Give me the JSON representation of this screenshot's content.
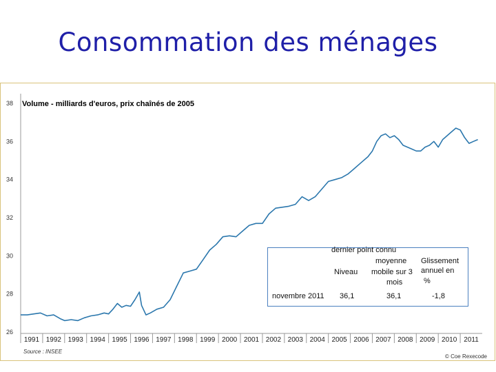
{
  "slide": {
    "title": "Consommation des ménages"
  },
  "chart_data": {
    "type": "line",
    "subtitle": "Volume - milliards d'euros, prix chaînés de 2005",
    "ylim": [
      26,
      38
    ],
    "yticks": [
      "38",
      "36",
      "34",
      "32",
      "30",
      "28",
      "26"
    ],
    "ytick_values": [
      38,
      36,
      34,
      32,
      30,
      28,
      26
    ],
    "xlim": [
      1991,
      2012
    ],
    "xticks": [
      "1991",
      "1992",
      "1993",
      "1994",
      "1995",
      "1996",
      "1997",
      "1998",
      "1999",
      "2000",
      "2001",
      "2002",
      "2003",
      "2004",
      "2005",
      "2006",
      "2007",
      "2008",
      "2009",
      "2010",
      "2011"
    ],
    "grid": false,
    "series": [
      {
        "name": "Consommation des ménages",
        "color": "#2b77ad",
        "x": [
          1991.0,
          1991.3,
          1991.6,
          1991.9,
          1992.2,
          1992.5,
          1992.8,
          1993.0,
          1993.3,
          1993.6,
          1993.9,
          1994.2,
          1994.5,
          1994.8,
          1995.0,
          1995.2,
          1995.4,
          1995.6,
          1995.8,
          1996.0,
          1996.2,
          1996.4,
          1996.5,
          1996.7,
          1996.9,
          1997.2,
          1997.5,
          1997.8,
          1998.1,
          1998.4,
          1998.7,
          1999.0,
          1999.3,
          1999.6,
          1999.9,
          2000.2,
          2000.5,
          2000.8,
          2001.1,
          2001.4,
          2001.7,
          2002.0,
          2002.3,
          2002.6,
          2002.9,
          2003.2,
          2003.5,
          2003.8,
          2004.1,
          2004.4,
          2004.7,
          2005.0,
          2005.3,
          2005.6,
          2005.9,
          2006.2,
          2006.5,
          2006.8,
          2007.0,
          2007.2,
          2007.4,
          2007.6,
          2007.8,
          2008.0,
          2008.2,
          2008.4,
          2008.6,
          2008.8,
          2009.0,
          2009.2,
          2009.4,
          2009.6,
          2009.8,
          2010.0,
          2010.2,
          2010.4,
          2010.6,
          2010.8,
          2011.0,
          2011.2,
          2011.4,
          2011.6,
          2011.8
        ],
        "values": [
          26.9,
          26.9,
          26.95,
          27.0,
          26.85,
          26.9,
          26.7,
          26.6,
          26.65,
          26.6,
          26.75,
          26.85,
          26.9,
          27.0,
          26.95,
          27.2,
          27.5,
          27.3,
          27.4,
          27.35,
          27.7,
          28.1,
          27.4,
          26.9,
          27.0,
          27.2,
          27.3,
          27.7,
          28.4,
          29.1,
          29.2,
          29.3,
          29.8,
          30.3,
          30.6,
          31.0,
          31.05,
          31.0,
          31.3,
          31.6,
          31.7,
          31.7,
          32.2,
          32.5,
          32.55,
          32.6,
          32.7,
          33.1,
          32.9,
          33.1,
          33.5,
          33.9,
          34.0,
          34.1,
          34.3,
          34.6,
          34.9,
          35.2,
          35.5,
          36.0,
          36.3,
          36.4,
          36.2,
          36.3,
          36.1,
          35.8,
          35.7,
          35.6,
          35.5,
          35.5,
          35.7,
          35.8,
          36.0,
          35.7,
          36.1,
          36.3,
          36.5,
          36.7,
          36.6,
          36.2,
          35.9,
          36.0,
          36.1
        ]
      }
    ],
    "source": "Source : INSEE",
    "credit": "© Coe Rexecode",
    "inset_table": {
      "header_line1": "dernier point connu",
      "col_niveau": "Niveau",
      "col_mm_line1": "moyenne",
      "col_mm_line2": "mobile sur 3",
      "col_mm_line3": "mois",
      "col_gl_line1": "Glissement",
      "col_gl_line2": "annuel en",
      "col_gl_line3": "%",
      "row_label": "novembre 2011",
      "niveau": "36,1",
      "moyenne_mobile": "36,1",
      "glissement": "-1,8"
    }
  }
}
